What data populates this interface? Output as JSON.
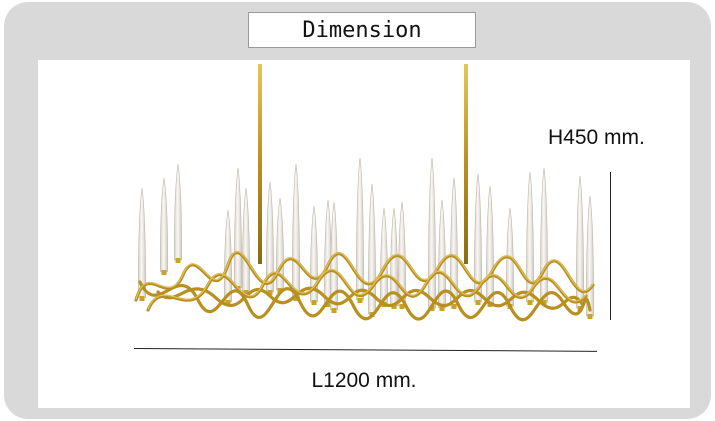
{
  "title": "Dimension",
  "dimensions": {
    "height_label": "H450 mm.",
    "length_label": "L1200 mm."
  },
  "colors": {
    "frame": "#d9d9d9",
    "panel": "#ffffff",
    "brass": "#c9a227",
    "glass": "#ece9e2"
  }
}
